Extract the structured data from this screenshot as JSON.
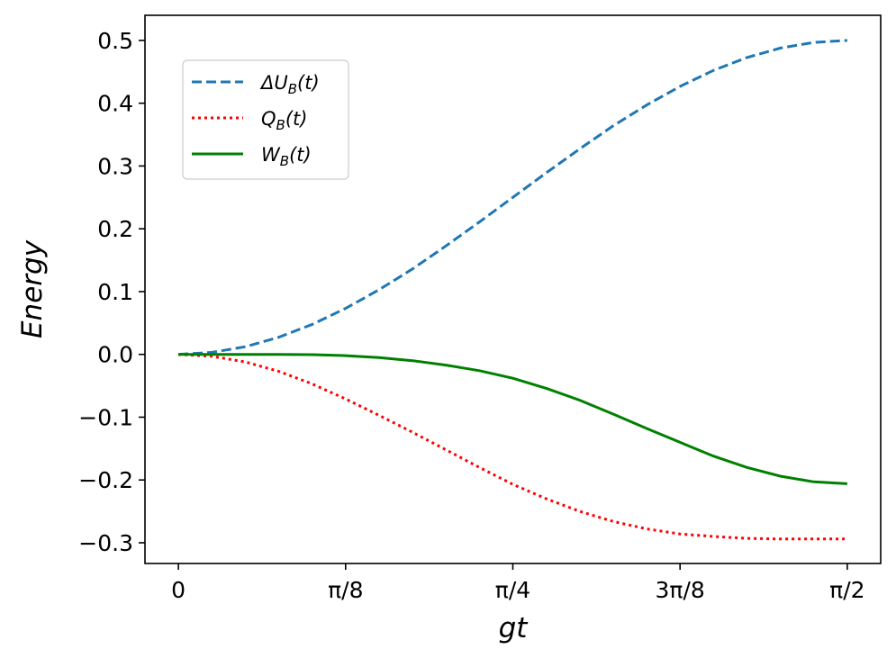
{
  "chart_data": {
    "type": "line",
    "title": "",
    "xlabel": "gt",
    "ylabel": "Energy",
    "xlim": [
      -0.0785,
      1.6493
    ],
    "ylim": [
      -0.333,
      0.54
    ],
    "x_ticks": [
      {
        "value": 0,
        "label": "0"
      },
      {
        "value": 0.3927,
        "label": "π/8"
      },
      {
        "value": 0.7854,
        "label": "π/4"
      },
      {
        "value": 1.1781,
        "label": "3π/8"
      },
      {
        "value": 1.5708,
        "label": "π/2"
      }
    ],
    "y_ticks": [
      {
        "value": 0.5,
        "label": "0.5"
      },
      {
        "value": 0.4,
        "label": "0.4"
      },
      {
        "value": 0.3,
        "label": "0.3"
      },
      {
        "value": 0.2,
        "label": "0.2"
      },
      {
        "value": 0.1,
        "label": "0.1"
      },
      {
        "value": 0.0,
        "label": "0.0"
      },
      {
        "value": -0.1,
        "label": "−0.1"
      },
      {
        "value": -0.2,
        "label": "−0.2"
      },
      {
        "value": -0.3,
        "label": "−0.3"
      }
    ],
    "grid": false,
    "legend_position": "upper-left",
    "series": [
      {
        "name": "ΔU_B(t)",
        "label_main": "ΔU",
        "label_sub": "B",
        "label_tail": "(t)",
        "color": "#1f77b4",
        "style": "dashed",
        "x": [
          0,
          0.0785,
          0.1571,
          0.2356,
          0.3142,
          0.3927,
          0.4712,
          0.5498,
          0.6283,
          0.7069,
          0.7854,
          0.8639,
          0.9425,
          1.021,
          1.0996,
          1.1781,
          1.2566,
          1.3352,
          1.4137,
          1.4923,
          1.5708
        ],
        "y": [
          0,
          0.0031,
          0.0122,
          0.0273,
          0.0477,
          0.0732,
          0.1029,
          0.1361,
          0.1727,
          0.2109,
          0.25,
          0.2891,
          0.3273,
          0.3639,
          0.3971,
          0.4268,
          0.4523,
          0.4727,
          0.4878,
          0.4969,
          0.5
        ]
      },
      {
        "name": "Q_B(t)",
        "label_main": "Q",
        "label_sub": "B",
        "label_tail": "(t)",
        "color": "#ff0000",
        "style": "dotted",
        "x": [
          0,
          0.0785,
          0.1571,
          0.2356,
          0.3142,
          0.3927,
          0.4712,
          0.5498,
          0.6283,
          0.7069,
          0.7854,
          0.8639,
          0.9425,
          1.021,
          1.0996,
          1.1781,
          1.2566,
          1.3352,
          1.4137,
          1.4923,
          1.5708
        ],
        "y": [
          0,
          -0.003,
          -0.012,
          -0.027,
          -0.047,
          -0.071,
          -0.097,
          -0.124,
          -0.152,
          -0.18,
          -0.207,
          -0.23,
          -0.25,
          -0.266,
          -0.278,
          -0.286,
          -0.29,
          -0.293,
          -0.294,
          -0.294,
          -0.294
        ]
      },
      {
        "name": "W_B(t)",
        "label_main": "W",
        "label_sub": "B",
        "label_tail": "(t)",
        "color": "#008000",
        "style": "solid",
        "x": [
          0,
          0.0785,
          0.1571,
          0.2356,
          0.3142,
          0.3927,
          0.4712,
          0.5498,
          0.6283,
          0.7069,
          0.7854,
          0.8639,
          0.9425,
          1.021,
          1.0996,
          1.1781,
          1.2566,
          1.3352,
          1.4137,
          1.4923,
          1.5708
        ],
        "y": [
          0,
          0,
          0,
          0,
          -0.0005,
          -0.002,
          -0.005,
          -0.01,
          -0.017,
          -0.026,
          -0.038,
          -0.054,
          -0.073,
          -0.095,
          -0.118,
          -0.14,
          -0.162,
          -0.18,
          -0.194,
          -0.203,
          -0.206
        ]
      }
    ]
  }
}
